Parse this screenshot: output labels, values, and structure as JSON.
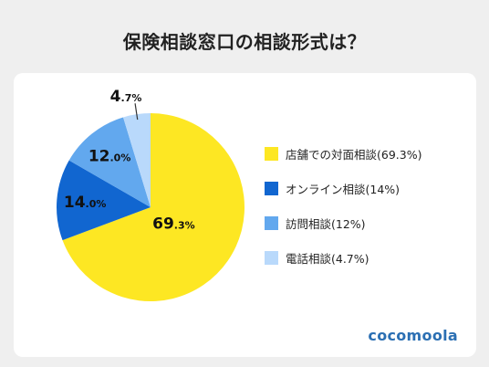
{
  "title": "保険相談窓口の相談形式は？",
  "brand": "cocomoola",
  "chart_data": {
    "type": "pie",
    "title": "保険相談窓口の相談形式は？",
    "slices": [
      {
        "name": "店舗での対面相談",
        "value": 69.3,
        "color": "#fde723",
        "label_int": "69",
        "label_dec": ".3%",
        "legend": "店舗での対面相談(69.3%)"
      },
      {
        "name": "オンライン相談",
        "value": 14.0,
        "color": "#1166d0",
        "label_int": "14",
        "label_dec": ".0%",
        "legend": "オンライン相談(14%)"
      },
      {
        "name": "訪問相談",
        "value": 12.0,
        "color": "#62a8ee",
        "label_int": "12",
        "label_dec": ".0%",
        "legend": "訪問相談(12%)"
      },
      {
        "name": "電話相談",
        "value": 4.7,
        "color": "#b9d9fb",
        "label_int": "4",
        "label_dec": ".7%",
        "legend": "電話相談(4.7%)"
      }
    ],
    "start": "top",
    "direction": "clockwise",
    "legend_position": "right"
  }
}
